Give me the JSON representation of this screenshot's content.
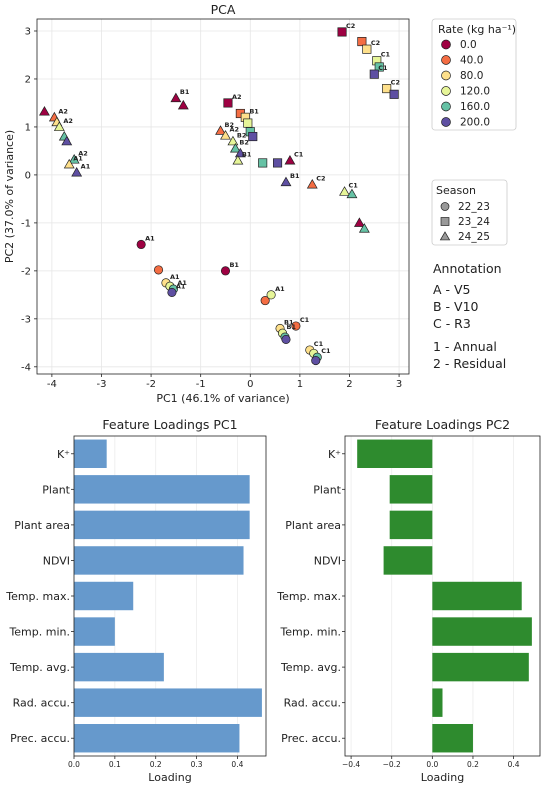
{
  "chart_data": [
    {
      "type": "scatter",
      "title": "PCA",
      "xlabel": "PC1 (46.1% of variance)",
      "ylabel": "PC2 (37.0% of variance)",
      "xlim": [
        -4.3,
        3.2
      ],
      "ylim": [
        -4.15,
        3.25
      ],
      "xticks": [
        -4,
        -3,
        -2,
        -1,
        0,
        1,
        2,
        3
      ],
      "yticks": [
        -4,
        -3,
        -2,
        -1,
        0,
        1,
        2,
        3
      ],
      "xtick_labels": [
        "-4",
        "-3",
        "-2",
        "-1",
        "0",
        "1",
        "2",
        "3"
      ],
      "ytick_labels": [
        "-4",
        "-3",
        "-2",
        "-1",
        "0",
        "1",
        "2",
        "3"
      ],
      "rate_legend": {
        "title": "Rate (kg ha⁻¹)",
        "entries": [
          {
            "label": "0.0",
            "color": "#9e0142"
          },
          {
            "label": "40.0",
            "color": "#f46d43"
          },
          {
            "label": "80.0",
            "color": "#fee08b"
          },
          {
            "label": "120.0",
            "color": "#e6f598"
          },
          {
            "label": "160.0",
            "color": "#66c2a5"
          },
          {
            "label": "200.0",
            "color": "#5e4fa2"
          }
        ]
      },
      "season_legend": {
        "title": "Season",
        "entries": [
          {
            "label": "22_23",
            "marker": "circle"
          },
          {
            "label": "23_24",
            "marker": "square"
          },
          {
            "label": "24_25",
            "marker": "triangle"
          }
        ]
      },
      "annotation": {
        "title": "Annotation",
        "lines": [
          "A - V5",
          "B - V10",
          "C - R3"
        ],
        "lines2": [
          "1 - Annual",
          "2 - Residual"
        ]
      },
      "points": [
        {
          "x": -2.2,
          "y": -1.45,
          "rate": 0,
          "season": "22_23",
          "label": "A1"
        },
        {
          "x": -1.85,
          "y": -1.98,
          "rate": 40,
          "season": "22_23",
          "label": ""
        },
        {
          "x": -1.7,
          "y": -2.25,
          "rate": 80,
          "season": "22_23",
          "label": "A1"
        },
        {
          "x": -1.62,
          "y": -2.32,
          "rate": 120,
          "season": "22_23",
          "label": ""
        },
        {
          "x": -1.55,
          "y": -2.38,
          "rate": 160,
          "season": "22_23",
          "label": "A1"
        },
        {
          "x": -1.58,
          "y": -2.45,
          "rate": 200,
          "season": "22_23",
          "label": "A1"
        },
        {
          "x": -0.5,
          "y": -2.0,
          "rate": 0,
          "season": "22_23",
          "label": "B1"
        },
        {
          "x": 0.3,
          "y": -2.62,
          "rate": 40,
          "season": "22_23",
          "label": ""
        },
        {
          "x": 0.42,
          "y": -2.5,
          "rate": 120,
          "season": "22_23",
          "label": "A1"
        },
        {
          "x": 0.92,
          "y": -3.15,
          "rate": 40,
          "season": "22_23",
          "label": "C1"
        },
        {
          "x": 0.6,
          "y": -3.2,
          "rate": 80,
          "season": "22_23",
          "label": "B1"
        },
        {
          "x": 0.65,
          "y": -3.3,
          "rate": 120,
          "season": "22_23",
          "label": "B1"
        },
        {
          "x": 0.7,
          "y": -3.38,
          "rate": 160,
          "season": "22_23",
          "label": ""
        },
        {
          "x": 0.72,
          "y": -3.43,
          "rate": 200,
          "season": "22_23",
          "label": ""
        },
        {
          "x": 1.2,
          "y": -3.65,
          "rate": 80,
          "season": "22_23",
          "label": "C1"
        },
        {
          "x": 1.28,
          "y": -3.72,
          "rate": 120,
          "season": "22_23",
          "label": ""
        },
        {
          "x": 1.35,
          "y": -3.8,
          "rate": 160,
          "season": "22_23",
          "label": "C1"
        },
        {
          "x": 1.32,
          "y": -3.87,
          "rate": 200,
          "season": "22_23",
          "label": ""
        },
        {
          "x": -0.45,
          "y": 1.5,
          "rate": 0,
          "season": "23_24",
          "label": "A2"
        },
        {
          "x": -0.2,
          "y": 1.28,
          "rate": 40,
          "season": "23_24",
          "label": ""
        },
        {
          "x": -0.1,
          "y": 1.2,
          "rate": 80,
          "season": "23_24",
          "label": "B1"
        },
        {
          "x": -0.05,
          "y": 1.08,
          "rate": 120,
          "season": "23_24",
          "label": ""
        },
        {
          "x": 0.0,
          "y": 0.9,
          "rate": 160,
          "season": "23_24",
          "label": ""
        },
        {
          "x": 0.05,
          "y": 0.8,
          "rate": 200,
          "season": "23_24",
          "label": ""
        },
        {
          "x": 0.25,
          "y": 0.25,
          "rate": 160,
          "season": "23_24",
          "label": ""
        },
        {
          "x": 0.55,
          "y": 0.25,
          "rate": 200,
          "season": "23_24",
          "label": ""
        },
        {
          "x": 1.85,
          "y": 2.98,
          "rate": 0,
          "season": "23_24",
          "label": "C2"
        },
        {
          "x": 2.25,
          "y": 2.78,
          "rate": 40,
          "season": "23_24",
          "label": ""
        },
        {
          "x": 2.35,
          "y": 2.62,
          "rate": 80,
          "season": "23_24",
          "label": "C2"
        },
        {
          "x": 2.55,
          "y": 2.38,
          "rate": 120,
          "season": "23_24",
          "label": "C1"
        },
        {
          "x": 2.6,
          "y": 2.25,
          "rate": 160,
          "season": "23_24",
          "label": ""
        },
        {
          "x": 2.5,
          "y": 2.1,
          "rate": 200,
          "season": "23_24",
          "label": "C1"
        },
        {
          "x": 2.75,
          "y": 1.8,
          "rate": 80,
          "season": "23_24",
          "label": "C2"
        },
        {
          "x": 2.9,
          "y": 1.68,
          "rate": 200,
          "season": "23_24",
          "label": ""
        },
        {
          "x": -4.15,
          "y": 1.32,
          "rate": 0,
          "season": "24_25",
          "label": ""
        },
        {
          "x": -3.95,
          "y": 1.2,
          "rate": 40,
          "season": "24_25",
          "label": "A2"
        },
        {
          "x": -3.9,
          "y": 1.1,
          "rate": 80,
          "season": "24_25",
          "label": ""
        },
        {
          "x": -3.85,
          "y": 1.0,
          "rate": 120,
          "season": "24_25",
          "label": "A2"
        },
        {
          "x": -3.75,
          "y": 0.8,
          "rate": 160,
          "season": "24_25",
          "label": ""
        },
        {
          "x": -3.7,
          "y": 0.7,
          "rate": 200,
          "season": "24_25",
          "label": ""
        },
        {
          "x": -3.55,
          "y": 0.32,
          "rate": 160,
          "season": "24_25",
          "label": "A2"
        },
        {
          "x": -3.65,
          "y": 0.22,
          "rate": 80,
          "season": "24_25",
          "label": "A1"
        },
        {
          "x": -3.5,
          "y": 0.05,
          "rate": 200,
          "season": "24_25",
          "label": "A1"
        },
        {
          "x": -1.5,
          "y": 1.6,
          "rate": 0,
          "season": "24_25",
          "label": "B1"
        },
        {
          "x": -1.35,
          "y": 1.45,
          "rate": 0,
          "season": "24_25",
          "label": ""
        },
        {
          "x": -0.6,
          "y": 0.92,
          "rate": 40,
          "season": "24_25",
          "label": "B2"
        },
        {
          "x": -0.5,
          "y": 0.82,
          "rate": 80,
          "season": "24_25",
          "label": "A2"
        },
        {
          "x": -0.35,
          "y": 0.7,
          "rate": 120,
          "season": "24_25",
          "label": "B2"
        },
        {
          "x": -0.3,
          "y": 0.55,
          "rate": 160,
          "season": "24_25",
          "label": "B2"
        },
        {
          "x": -0.2,
          "y": 0.45,
          "rate": 200,
          "season": "24_25",
          "label": ""
        },
        {
          "x": -0.25,
          "y": 0.3,
          "rate": 120,
          "season": "24_25",
          "label": "B1"
        },
        {
          "x": 0.8,
          "y": 0.3,
          "rate": 0,
          "season": "24_25",
          "label": "C1"
        },
        {
          "x": 0.72,
          "y": -0.15,
          "rate": 200,
          "season": "24_25",
          "label": "B1"
        },
        {
          "x": 1.25,
          "y": -0.2,
          "rate": 40,
          "season": "24_25",
          "label": "C2"
        },
        {
          "x": 1.9,
          "y": -0.35,
          "rate": 120,
          "season": "24_25",
          "label": "C1"
        },
        {
          "x": 2.05,
          "y": -0.4,
          "rate": 160,
          "season": "24_25",
          "label": ""
        },
        {
          "x": 2.2,
          "y": -1.0,
          "rate": 0,
          "season": "24_25",
          "label": ""
        },
        {
          "x": 2.3,
          "y": -1.12,
          "rate": 160,
          "season": "24_25",
          "label": ""
        }
      ]
    },
    {
      "type": "bar",
      "orientation": "horizontal",
      "title": "Feature Loadings PC1",
      "xlabel": "Loading",
      "ylabel": "",
      "xlim": [
        0,
        0.47
      ],
      "xticks": [
        0.0,
        0.1,
        0.2,
        0.3,
        0.4
      ],
      "xtick_labels": [
        "0.0",
        "0.1",
        "0.2",
        "0.3",
        "0.4"
      ],
      "color": "#6699cc",
      "categories": [
        "K⁺",
        "Plant",
        "Plant area",
        "NDVI",
        "Temp. max.",
        "Temp. min.",
        "Temp. avg.",
        "Rad. accu.",
        "Prec. accu."
      ],
      "values": [
        0.08,
        0.43,
        0.43,
        0.415,
        0.145,
        0.1,
        0.22,
        0.46,
        0.405
      ]
    },
    {
      "type": "bar",
      "orientation": "horizontal",
      "title": "Feature Loadings PC2",
      "xlabel": "Loading",
      "ylabel": "",
      "xlim": [
        -0.43,
        0.53
      ],
      "xticks": [
        -0.4,
        -0.2,
        0.0,
        0.2,
        0.4
      ],
      "xtick_labels": [
        "−0.4",
        "−0.2",
        "0.0",
        "0.2",
        "0.4"
      ],
      "color": "#2e8b2e",
      "categories": [
        "K⁺",
        "Plant",
        "Plant area",
        "NDVI",
        "Temp. max.",
        "Temp. min.",
        "Temp. avg.",
        "Rad. accu.",
        "Prec. accu."
      ],
      "values": [
        -0.37,
        -0.21,
        -0.21,
        -0.24,
        0.44,
        0.49,
        0.475,
        0.05,
        0.2
      ]
    }
  ]
}
